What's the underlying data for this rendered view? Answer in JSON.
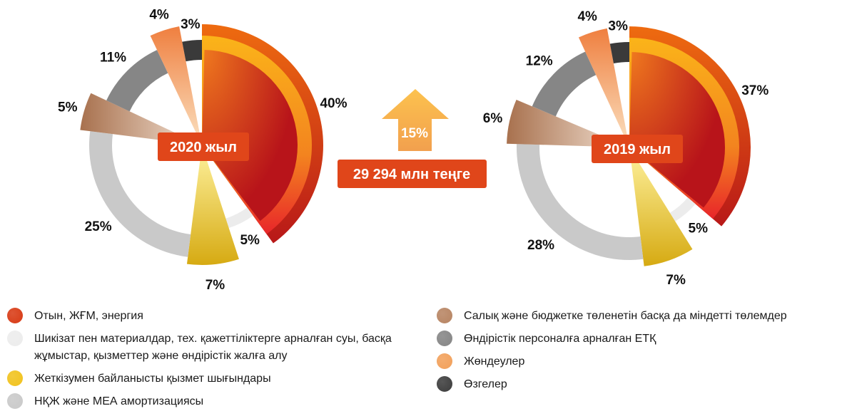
{
  "center": {
    "growth_label": "15%",
    "value_label": "29 294 млн теңге"
  },
  "chart_data": [
    {
      "type": "pie",
      "title": "2020 жыл",
      "slices": [
        {
          "name": "Отын, ЖҒМ, энергия",
          "value": 40,
          "label": "40%"
        },
        {
          "name": "Шикізат пен материалдар, тех. қажеттіліктерге арналған суы, басқа жұмыстар, қызметтер және өндірістік жалға алу",
          "value": 5,
          "label": "5%"
        },
        {
          "name": "Жеткізумен байланысты қызмет шығындары",
          "value": 7,
          "label": "7%"
        },
        {
          "name": "НҚЖ және МЕА амортизациясы",
          "value": 25,
          "label": "25%"
        },
        {
          "name": "Салық және бюджетке төленетін басқа да міндетті төлемдер",
          "value": 5,
          "label": "5%"
        },
        {
          "name": "Өндірістік персоналға арналған ЕТҚ",
          "value": 11,
          "label": "11%"
        },
        {
          "name": "Жөндеулер",
          "value": 4,
          "label": "4%"
        },
        {
          "name": "Өзгелер",
          "value": 3,
          "label": "3%"
        }
      ]
    },
    {
      "type": "pie",
      "title": "2019 жыл",
      "slices": [
        {
          "name": "Отын, ЖҒМ, энергия",
          "value": 37,
          "label": "37%"
        },
        {
          "name": "Шикізат пен материалдар, тех. қажеттіліктерге арналған суы, басқа жұмыстар, қызметтер және өндірістік жалға алу",
          "value": 5,
          "label": "5%"
        },
        {
          "name": "Жеткізумен байланысты қызмет шығындары",
          "value": 7,
          "label": "7%"
        },
        {
          "name": "НҚЖ және МЕА амортизациясы",
          "value": 28,
          "label": "28%"
        },
        {
          "name": "Салық және бюджетке төленетін басқа да міндетті төлемдер",
          "value": 6,
          "label": "6%"
        },
        {
          "name": "Өндірістік персоналға арналған ЕТҚ",
          "value": 12,
          "label": "12%"
        },
        {
          "name": "Жөндеулер",
          "value": 4,
          "label": "4%"
        },
        {
          "name": "Өзгелер",
          "value": 3,
          "label": "3%"
        }
      ]
    }
  ],
  "legend": {
    "left": [
      {
        "label": "Отын, ЖҒМ, энергия",
        "color": "#d83a14"
      },
      {
        "label": "Шикізат пен материалдар, тех. қажеттіліктерге арналған суы, басқа жұмыстар, қызметтер және өндірістік жалға алу",
        "color": "#ececec"
      },
      {
        "label": "Жеткізумен байланысты қызмет шығындары",
        "color": "#f1c21c"
      },
      {
        "label": "НҚЖ және МЕА амортизациясы",
        "color": "#c9c9c9"
      }
    ],
    "right": [
      {
        "label": "Салық және бюджетке төленетін басқа да міндетті төлемдер",
        "color": "#b78462"
      },
      {
        "label": "Өндірістік персоналға арналған ЕТҚ",
        "color": "#858585"
      },
      {
        "label": "Жөндеулер",
        "color": "#f2a05a"
      },
      {
        "label": "Өзгелер",
        "color": "#3c3c3c"
      }
    ]
  }
}
